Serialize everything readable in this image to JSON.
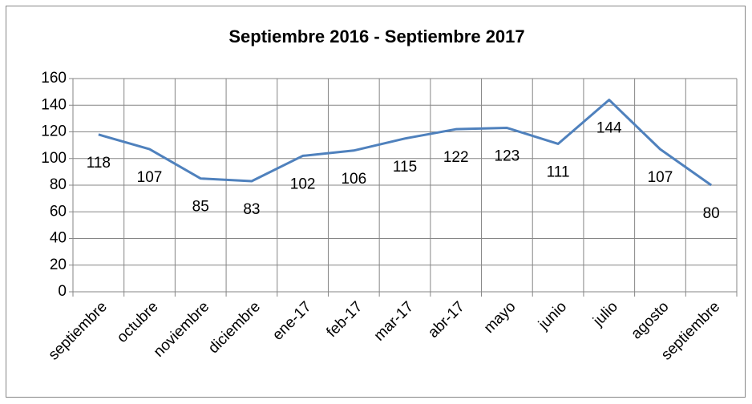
{
  "chart_data": {
    "type": "line",
    "title": "Septiembre 2016 - Septiembre 2017",
    "categories": [
      "septiembre",
      "octubre",
      "noviembre",
      "diciembre",
      "ene-17",
      "feb-17",
      "mar-17",
      "abr-17",
      "mayo",
      "junio",
      "julio",
      "agosto",
      "septiembre"
    ],
    "values": [
      118,
      107,
      85,
      83,
      102,
      106,
      115,
      122,
      123,
      111,
      144,
      107,
      80
    ],
    "color": "#4f81bd",
    "ylim": [
      0,
      160
    ],
    "yticks": [
      0,
      20,
      40,
      60,
      80,
      100,
      120,
      140,
      160
    ],
    "grid": true
  }
}
